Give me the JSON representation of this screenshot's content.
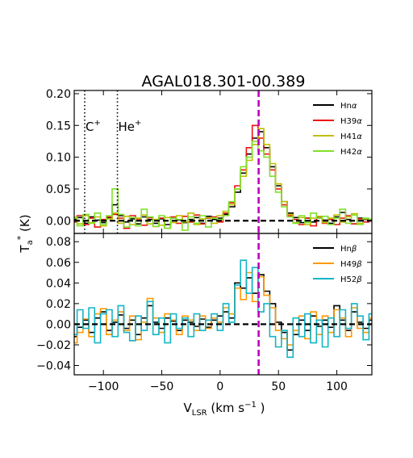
{
  "chart_data": {
    "type": "line",
    "title": "AGAL018.301-00.389",
    "xlabel": "V",
    "xlabel_sub": "LSR",
    "xlabel_unit": " (km s",
    "xlabel_exp": "−1",
    "xlabel_close": " )",
    "ylabel": "T",
    "ylabel_sub": "a",
    "ylabel_sup": "*",
    "ylabel_unit": " (K)",
    "xlim": [
      -125,
      130
    ],
    "xticks": [
      -100,
      -50,
      0,
      50,
      100
    ],
    "xtick_labels": [
      "−100",
      "−50",
      "0",
      "50",
      "100"
    ],
    "vline": {
      "x": 33,
      "color": "#bf00bf"
    },
    "panels": [
      {
        "name": "alpha",
        "ylim": [
          -0.02,
          0.205
        ],
        "yticks": [
          0.0,
          0.05,
          0.1,
          0.15,
          0.2
        ],
        "ytick_labels": [
          "0.00",
          "0.05",
          "0.10",
          "0.15",
          "0.20"
        ],
        "markers": [
          {
            "x": -116,
            "label": "C",
            "sup": "+"
          },
          {
            "x": -88,
            "label": "He",
            "sup": "+"
          }
        ],
        "legend": [
          {
            "name": "Hn",
            "greek": "α",
            "color": "#000000"
          },
          {
            "name": "H39",
            "greek": "α",
            "color": "#ee1111"
          },
          {
            "name": "H41",
            "greek": "α",
            "color": "#bfbf00"
          },
          {
            "name": "H42",
            "greek": "α",
            "color": "#80e22a"
          }
        ],
        "series": [
          {
            "name": "Hnα",
            "color": "#000000",
            "x": [
              -125,
              -120,
              -115,
              -110,
              -105,
              -100,
              -95,
              -90,
              -85,
              -80,
              -75,
              -70,
              -65,
              -60,
              -55,
              -50,
              -45,
              -40,
              -35,
              -30,
              -25,
              -20,
              -15,
              -10,
              -5,
              0,
              5,
              10,
              15,
              20,
              25,
              30,
              35,
              40,
              45,
              50,
              55,
              60,
              65,
              70,
              75,
              80,
              85,
              90,
              95,
              100,
              105,
              110,
              115,
              120,
              125,
              130
            ],
            "y": [
              0.002,
              0.005,
              -0.004,
              0.006,
              0.001,
              -0.003,
              0.004,
              0.025,
              0.008,
              -0.002,
              0.003,
              -0.005,
              0.006,
              0.002,
              -0.004,
              0.003,
              -0.006,
              0.004,
              0.001,
              -0.003,
              0.002,
              0.005,
              -0.004,
              0.007,
              0.002,
              0.004,
              0.01,
              0.022,
              0.045,
              0.075,
              0.105,
              0.13,
              0.14,
              0.115,
              0.085,
              0.055,
              0.03,
              0.012,
              0.005,
              -0.003,
              0.004,
              -0.002,
              0.005,
              0.001,
              -0.004,
              0.006,
              0.013,
              0.002,
              -0.005,
              0.004,
              0.002,
              0.001
            ]
          },
          {
            "name": "H39α",
            "color": "#ee1111",
            "x": [
              -125,
              -120,
              -115,
              -110,
              -105,
              -100,
              -95,
              -90,
              -85,
              -80,
              -75,
              -70,
              -65,
              -60,
              -55,
              -50,
              -45,
              -40,
              -35,
              -30,
              -25,
              -20,
              -15,
              -10,
              -5,
              0,
              5,
              10,
              15,
              20,
              25,
              30,
              35,
              40,
              45,
              50,
              55,
              60,
              65,
              70,
              75,
              80,
              85,
              90,
              95,
              100,
              105,
              110,
              115,
              120,
              125,
              130
            ],
            "y": [
              -0.002,
              0.008,
              -0.006,
              0.004,
              -0.01,
              0.002,
              0.006,
              0.01,
              0.004,
              -0.012,
              0.008,
              0.003,
              -0.007,
              0.005,
              -0.009,
              0.004,
              -0.012,
              0.006,
              -0.004,
              0.007,
              -0.002,
              0.009,
              -0.005,
              0.004,
              0.006,
              -0.002,
              0.012,
              0.028,
              0.055,
              0.08,
              0.115,
              0.15,
              0.13,
              0.105,
              0.08,
              0.05,
              0.025,
              0.008,
              0.002,
              -0.006,
              0.004,
              -0.008,
              0.006,
              -0.004,
              0.002,
              -0.006,
              0.004,
              0.008,
              -0.005,
              0.003,
              -0.002,
              0.001
            ]
          },
          {
            "name": "H41α",
            "color": "#bfbf00",
            "x": [
              -125,
              -120,
              -115,
              -110,
              -105,
              -100,
              -95,
              -90,
              -85,
              -80,
              -75,
              -70,
              -65,
              -60,
              -55,
              -50,
              -45,
              -40,
              -35,
              -30,
              -25,
              -20,
              -15,
              -10,
              -5,
              0,
              5,
              10,
              15,
              20,
              25,
              30,
              35,
              40,
              45,
              50,
              55,
              60,
              65,
              70,
              75,
              80,
              85,
              90,
              95,
              100,
              105,
              110,
              115,
              120,
              125,
              130
            ],
            "y": [
              0.004,
              -0.005,
              0.008,
              -0.003,
              0.006,
              -0.008,
              0.003,
              0.012,
              -0.004,
              0.007,
              -0.006,
              0.004,
              0.009,
              -0.005,
              0.002,
              -0.007,
              0.005,
              -0.003,
              0.008,
              -0.002,
              0.012,
              -0.006,
              0.003,
              0.005,
              -0.004,
              0.008,
              0.015,
              0.025,
              0.05,
              0.07,
              0.095,
              0.12,
              0.145,
              0.12,
              0.09,
              0.058,
              0.03,
              0.01,
              -0.003,
              0.005,
              -0.006,
              0.004,
              0.007,
              -0.003,
              0.004,
              0.009,
              -0.002,
              0.006,
              0.011,
              -0.004,
              0.003,
              0.002
            ]
          },
          {
            "name": "H42α",
            "color": "#80e22a",
            "x": [
              -125,
              -120,
              -115,
              -110,
              -105,
              -100,
              -95,
              -90,
              -85,
              -80,
              -75,
              -70,
              -65,
              -60,
              -55,
              -50,
              -45,
              -40,
              -35,
              -30,
              -25,
              -20,
              -15,
              -10,
              -5,
              0,
              5,
              10,
              15,
              20,
              25,
              30,
              35,
              40,
              45,
              50,
              55,
              60,
              65,
              70,
              75,
              80,
              85,
              90,
              95,
              100,
              105,
              110,
              115,
              120,
              125,
              130
            ],
            "y": [
              0.006,
              -0.008,
              0.01,
              -0.004,
              0.012,
              -0.006,
              0.008,
              0.05,
              0.01,
              -0.01,
              0.005,
              -0.008,
              0.018,
              0.006,
              -0.009,
              0.008,
              -0.012,
              0.004,
              0.002,
              -0.015,
              0.006,
              -0.004,
              0.008,
              -0.01,
              0.004,
              0.002,
              0.008,
              0.03,
              0.05,
              0.085,
              0.1,
              0.125,
              0.11,
              0.1,
              0.07,
              0.045,
              0.022,
              0.006,
              -0.004,
              0.008,
              -0.003,
              0.012,
              0.004,
              0.007,
              -0.006,
              0.004,
              0.018,
              -0.004,
              0.009,
              -0.006,
              0.004,
              0.002
            ]
          }
        ]
      },
      {
        "name": "beta",
        "ylim": [
          -0.049,
          0.088
        ],
        "yticks": [
          -0.04,
          -0.02,
          0.0,
          0.02,
          0.04,
          0.06,
          0.08
        ],
        "ytick_labels": [
          "−0.04",
          "−0.02",
          "0.00",
          "0.02",
          "0.04",
          "0.06",
          "0.08"
        ],
        "markers": [],
        "legend": [
          {
            "name": "Hn",
            "greek": "β",
            "color": "#000000"
          },
          {
            "name": "H49",
            "greek": "β",
            "color": "#ff9900"
          },
          {
            "name": "H52",
            "greek": "β",
            "color": "#12b5c6"
          }
        ],
        "series": [
          {
            "name": "Hnβ",
            "color": "#000000",
            "x": [
              -125,
              -120,
              -115,
              -110,
              -105,
              -100,
              -95,
              -90,
              -85,
              -80,
              -75,
              -70,
              -65,
              -60,
              -55,
              -50,
              -45,
              -40,
              -35,
              -30,
              -25,
              -20,
              -15,
              -10,
              -5,
              0,
              5,
              10,
              15,
              20,
              25,
              30,
              35,
              40,
              45,
              50,
              55,
              60,
              65,
              70,
              75,
              80,
              85,
              90,
              95,
              100,
              105,
              110,
              115,
              120,
              125,
              130
            ],
            "y": [
              -0.012,
              -0.003,
              0.004,
              -0.008,
              0.006,
              0.012,
              -0.006,
              0.002,
              0.009,
              -0.004,
              0.004,
              -0.01,
              0.006,
              0.018,
              0.002,
              -0.004,
              0.006,
              0.003,
              -0.006,
              0.004,
              0.002,
              -0.002,
              0.005,
              -0.003,
              0.004,
              0.008,
              0.012,
              0.006,
              0.04,
              0.035,
              0.045,
              0.03,
              0.048,
              0.032,
              0.02,
              0.002,
              -0.008,
              -0.025,
              -0.01,
              0.004,
              -0.006,
              0.008,
              -0.002,
              0.004,
              -0.003,
              0.018,
              0.004,
              -0.006,
              0.012,
              0.002,
              -0.004,
              0.004
            ]
          },
          {
            "name": "H49β",
            "color": "#ff9900",
            "x": [
              -125,
              -120,
              -115,
              -110,
              -105,
              -100,
              -95,
              -90,
              -85,
              -80,
              -75,
              -70,
              -65,
              -60,
              -55,
              -50,
              -45,
              -40,
              -35,
              -30,
              -25,
              -20,
              -15,
              -10,
              -5,
              0,
              5,
              10,
              15,
              20,
              25,
              30,
              35,
              40,
              45,
              50,
              55,
              60,
              65,
              70,
              75,
              80,
              85,
              90,
              95,
              100,
              105,
              110,
              115,
              120,
              125,
              130
            ],
            "y": [
              -0.018,
              -0.008,
              0.005,
              -0.012,
              0.01,
              0.015,
              -0.01,
              0.004,
              0.012,
              -0.006,
              0.008,
              -0.015,
              0.002,
              0.025,
              0.006,
              -0.008,
              0.01,
              0.004,
              -0.01,
              0.008,
              0.004,
              -0.006,
              0.008,
              -0.004,
              0.006,
              0.002,
              0.016,
              0.01,
              0.035,
              0.024,
              0.05,
              0.022,
              0.046,
              0.028,
              0.016,
              -0.006,
              -0.014,
              -0.02,
              -0.006,
              0.008,
              -0.014,
              0.012,
              -0.01,
              0.008,
              -0.008,
              0.014,
              0.006,
              -0.012,
              0.016,
              -0.004,
              -0.008,
              0.006
            ]
          },
          {
            "name": "H52β",
            "color": "#12b5c6",
            "x": [
              -125,
              -120,
              -115,
              -110,
              -105,
              -100,
              -95,
              -90,
              -85,
              -80,
              -75,
              -70,
              -65,
              -60,
              -55,
              -50,
              -45,
              -40,
              -35,
              -30,
              -25,
              -20,
              -15,
              -10,
              -5,
              0,
              5,
              10,
              15,
              20,
              25,
              30,
              35,
              40,
              45,
              50,
              55,
              60,
              65,
              70,
              75,
              80,
              85,
              90,
              95,
              100,
              105,
              110,
              115,
              120,
              125,
              130
            ],
            "y": [
              -0.01,
              0.014,
              -0.004,
              0.016,
              -0.018,
              0.01,
              0.014,
              -0.012,
              0.018,
              -0.008,
              -0.016,
              0.008,
              -0.006,
              0.022,
              -0.01,
              0.006,
              -0.018,
              0.01,
              -0.004,
              0.006,
              -0.012,
              0.01,
              -0.006,
              0.004,
              0.01,
              -0.006,
              0.02,
              0.002,
              0.038,
              0.062,
              0.03,
              0.055,
              0.012,
              0.02,
              -0.012,
              -0.022,
              -0.006,
              -0.032,
              0.006,
              -0.012,
              0.01,
              -0.018,
              0.004,
              -0.022,
              0.006,
              -0.012,
              0.014,
              -0.004,
              0.02,
              0.008,
              -0.015,
              0.01
            ]
          }
        ]
      }
    ]
  }
}
